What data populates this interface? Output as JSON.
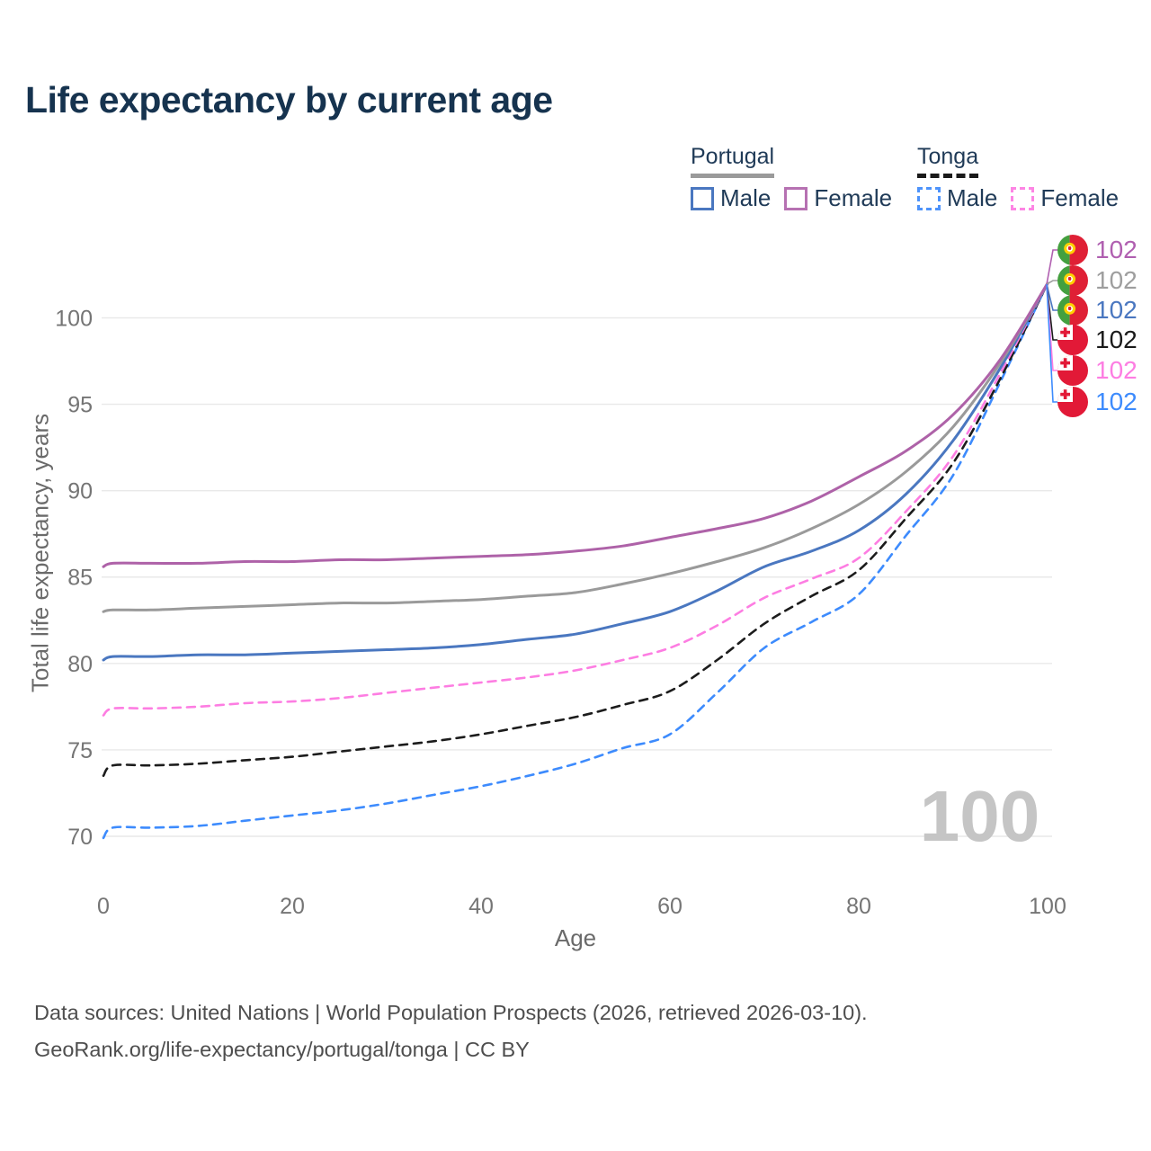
{
  "header": {
    "title": "Life expectancy by current age"
  },
  "legend": {
    "groups": [
      {
        "country": "Portugal",
        "line_style": "solid",
        "underline_color": "#9a9a9a",
        "items": [
          {
            "label": "Male",
            "color": "#4a77c0",
            "style": "solid"
          },
          {
            "label": "Female",
            "color": "#b671b2",
            "style": "solid"
          }
        ]
      },
      {
        "country": "Tonga",
        "line_style": "dashed",
        "underline_color": "#1a1a1a",
        "items": [
          {
            "label": "Male",
            "color": "#4d93fb",
            "style": "dashed"
          },
          {
            "label": "Female",
            "color": "#fd85e4",
            "style": "dashed"
          }
        ]
      }
    ]
  },
  "chart_data": {
    "type": "line",
    "title": "Life expectancy by current age",
    "xlabel": "Age",
    "ylabel": "Total life expectancy, years",
    "x_ticks": [
      0,
      20,
      40,
      60,
      80,
      100
    ],
    "y_ticks": [
      70,
      75,
      80,
      85,
      90,
      95,
      100
    ],
    "xlim": [
      0,
      100
    ],
    "ylim": [
      68.5,
      103
    ],
    "grid": "horizontal-only",
    "legend_position": "top-right",
    "x": [
      0,
      1,
      5,
      10,
      15,
      20,
      25,
      30,
      35,
      40,
      45,
      50,
      55,
      60,
      65,
      70,
      75,
      80,
      85,
      90,
      95,
      100
    ],
    "series": [
      {
        "name": "Tonga Male",
        "country": "Tonga",
        "sex": "Male",
        "color": "#3d8bfd",
        "dash": true,
        "values": [
          69.9,
          70.5,
          70.5,
          70.6,
          70.9,
          71.2,
          71.5,
          71.9,
          72.4,
          72.9,
          73.5,
          74.2,
          75.1,
          75.9,
          78.3,
          80.9,
          82.4,
          84.0,
          87.4,
          90.9,
          96.3,
          102
        ]
      },
      {
        "name": "Tonga Both sexes",
        "country": "Tonga",
        "sex": "Both",
        "color": "#1c1c1c",
        "dash": true,
        "values": [
          73.5,
          74.1,
          74.1,
          74.2,
          74.4,
          74.6,
          74.9,
          75.2,
          75.5,
          75.9,
          76.4,
          76.9,
          77.6,
          78.4,
          80.2,
          82.3,
          83.9,
          85.4,
          88.4,
          91.6,
          96.5,
          102
        ]
      },
      {
        "name": "Tonga Female",
        "country": "Tonga",
        "sex": "Female",
        "color": "#fd7de2",
        "dash": true,
        "values": [
          77.0,
          77.4,
          77.4,
          77.5,
          77.7,
          77.8,
          78.0,
          78.3,
          78.6,
          78.9,
          79.2,
          79.6,
          80.2,
          80.9,
          82.2,
          83.8,
          84.9,
          86.1,
          88.8,
          92.0,
          96.8,
          102
        ]
      },
      {
        "name": "Portugal Male",
        "country": "Portugal",
        "sex": "Male",
        "color": "#4a77c0",
        "dash": false,
        "values": [
          80.2,
          80.4,
          80.4,
          80.5,
          80.5,
          80.6,
          80.7,
          80.8,
          80.9,
          81.1,
          81.4,
          81.7,
          82.3,
          83.0,
          84.2,
          85.6,
          86.5,
          87.7,
          89.8,
          92.9,
          97.1,
          102
        ]
      },
      {
        "name": "Portugal Both sexes",
        "country": "Portugal",
        "sex": "Both",
        "color": "#9a9a9a",
        "dash": false,
        "values": [
          83.0,
          83.1,
          83.1,
          83.2,
          83.3,
          83.4,
          83.5,
          83.5,
          83.6,
          83.7,
          83.9,
          84.1,
          84.6,
          85.2,
          85.9,
          86.7,
          87.8,
          89.2,
          91.1,
          93.7,
          97.4,
          102
        ]
      },
      {
        "name": "Portugal Female",
        "country": "Portugal",
        "sex": "Female",
        "color": "#ae62a8",
        "dash": false,
        "values": [
          85.6,
          85.8,
          85.8,
          85.8,
          85.9,
          85.9,
          86.0,
          86.0,
          86.1,
          86.2,
          86.3,
          86.5,
          86.8,
          87.3,
          87.8,
          88.4,
          89.4,
          90.8,
          92.3,
          94.4,
          97.6,
          102
        ]
      }
    ]
  },
  "end_labels": [
    {
      "country": "portugal",
      "value": "102",
      "color": "#b05fb0"
    },
    {
      "country": "portugal",
      "value": "102",
      "color": "#9e9e9e"
    },
    {
      "country": "portugal",
      "value": "102",
      "color": "#4a77c0"
    },
    {
      "country": "tonga",
      "value": "102",
      "color": "#1a1a1a"
    },
    {
      "country": "tonga",
      "value": "102",
      "color": "#fd7de2"
    },
    {
      "country": "tonga",
      "value": "102",
      "color": "#3d8bfd"
    }
  ],
  "watermark": "100",
  "footer": {
    "line1": "Data sources: United Nations | World Population Prospects (2026, retrieved 2026-03-10).",
    "line2": "GeoRank.org/life-expectancy/portugal/tonga | CC BY"
  }
}
